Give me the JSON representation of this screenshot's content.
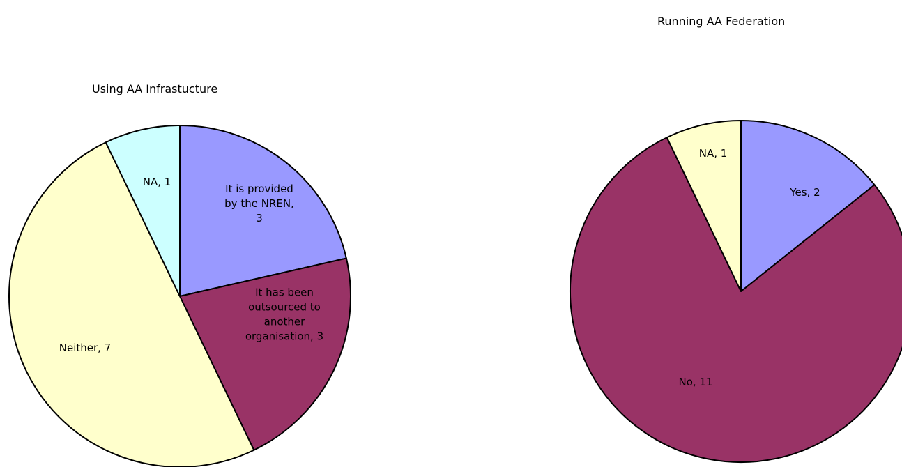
{
  "chart_data": [
    {
      "type": "pie",
      "title": "Using AA Infrastucture",
      "start": "top",
      "direction": "clockwise",
      "slices": [
        {
          "label": "It is provided by the NREN",
          "value": 3,
          "color": "#9999ff",
          "label_lines": [
            "It is provided",
            "by the NREN,",
            "3"
          ]
        },
        {
          "label": "It has been outsourced to another organisation",
          "value": 3,
          "color": "#993366",
          "label_lines": [
            "It has been",
            "outsourced to",
            "another",
            "organisation, 3"
          ]
        },
        {
          "label": "Neither",
          "value": 7,
          "color": "#ffffcc",
          "label_lines": [
            "Neither, 7"
          ]
        },
        {
          "label": "NA",
          "value": 1,
          "color": "#ccffff",
          "label_lines": [
            "NA, 1"
          ]
        }
      ]
    },
    {
      "type": "pie",
      "title": "Running AA Federation",
      "start": "top",
      "direction": "clockwise",
      "slices": [
        {
          "label": "Yes",
          "value": 2,
          "color": "#9999ff",
          "label_lines": [
            "Yes, 2"
          ]
        },
        {
          "label": "No",
          "value": 11,
          "color": "#993366",
          "label_lines": [
            "No, 11"
          ]
        },
        {
          "label": "NA",
          "value": 1,
          "color": "#ffffcc",
          "label_lines": [
            "NA, 1"
          ]
        }
      ]
    }
  ]
}
